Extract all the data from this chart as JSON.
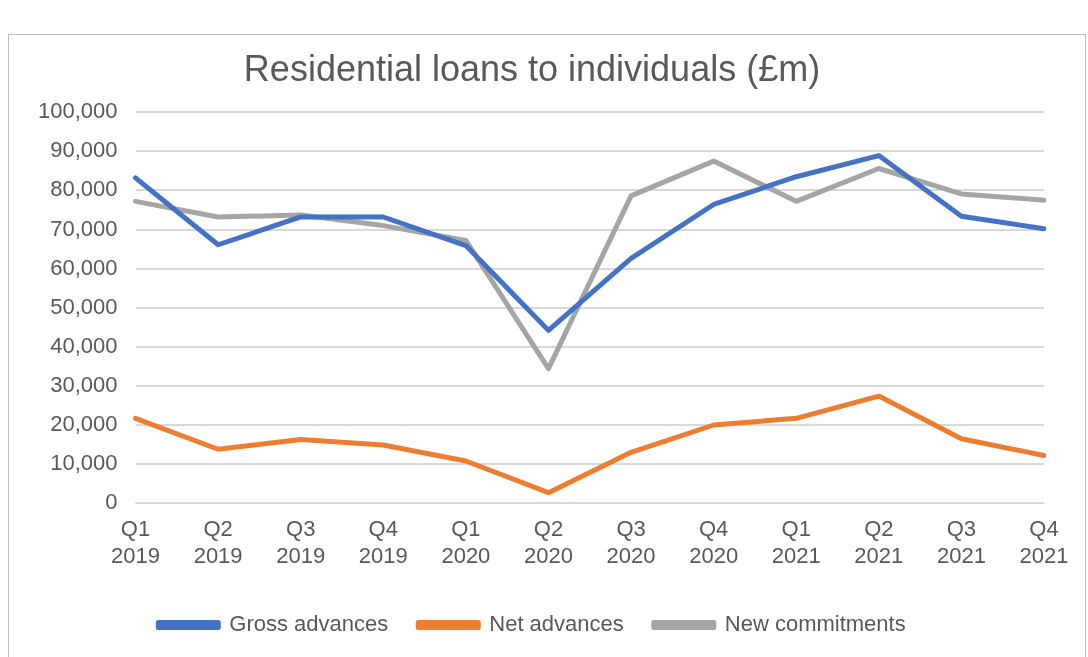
{
  "chart_data": {
    "type": "line",
    "title": "Residential loans to individuals (£m)",
    "categories": [
      "Q1 2019",
      "Q2 2019",
      "Q3 2019",
      "Q4 2019",
      "Q1 2020",
      "Q2 2020",
      "Q3 2020",
      "Q4 2020",
      "Q1 2021",
      "Q2 2021",
      "Q3 2021",
      "Q4 2021"
    ],
    "series": [
      {
        "name": "Gross advances",
        "color": "#4472c4",
        "values": [
          83200,
          66100,
          73200,
          73200,
          65900,
          44200,
          62600,
          76400,
          83500,
          88900,
          73400,
          70200
        ]
      },
      {
        "name": "Net advances",
        "color": "#ed7d31",
        "values": [
          21700,
          13800,
          16300,
          14900,
          10800,
          2700,
          13000,
          20000,
          21700,
          27400,
          16500,
          12200
        ]
      },
      {
        "name": "New commitments",
        "color": "#a5a5a5",
        "values": [
          77200,
          73200,
          73700,
          71000,
          67200,
          34400,
          78600,
          87500,
          77200,
          85600,
          79100,
          77500
        ]
      }
    ],
    "ylim": [
      0,
      100000
    ],
    "yticks": [
      {
        "value": 0,
        "label": "0"
      },
      {
        "value": 10000,
        "label": "10,000"
      },
      {
        "value": 20000,
        "label": "20,000"
      },
      {
        "value": 30000,
        "label": "30,000"
      },
      {
        "value": 40000,
        "label": "40,000"
      },
      {
        "value": 50000,
        "label": "50,000"
      },
      {
        "value": 60000,
        "label": "60,000"
      },
      {
        "value": 70000,
        "label": "70,000"
      },
      {
        "value": 80000,
        "label": "80,000"
      },
      {
        "value": 90000,
        "label": "90,000"
      },
      {
        "value": 100000,
        "label": "100,000"
      }
    ],
    "grid": "y",
    "legend": "bottom",
    "marker": "none",
    "line_style": "solid"
  }
}
